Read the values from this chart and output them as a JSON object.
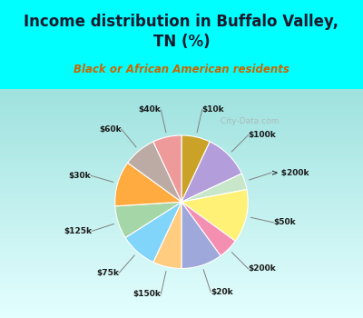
{
  "title": "Income distribution in Buffalo Valley,\nTN (%)",
  "subtitle": "Black or African American residents",
  "title_color": "#1a1a2e",
  "subtitle_color": "#cc6600",
  "background_top": "#00ffff",
  "background_chart_color": "#d0ede8",
  "labels": [
    "$10k",
    "$100k",
    "> $200k",
    "$50k",
    "$200k",
    "$20k",
    "$150k",
    "$75k",
    "$125k",
    "$30k",
    "$60k",
    "$40k"
  ],
  "values": [
    7,
    11,
    4,
    13,
    5,
    10,
    7,
    9,
    8,
    11,
    8,
    7
  ],
  "colors": [
    "#c9a227",
    "#b39ddb",
    "#c8e6c9",
    "#fff176",
    "#f48fb1",
    "#9fa8da",
    "#ffcc80",
    "#81d4fa",
    "#a5d6a7",
    "#ffab40",
    "#bcaaa4",
    "#ef9a9a"
  ],
  "label_colors": [
    "#5d4037",
    "#5d4037",
    "#5d4037",
    "#5d4037",
    "#5d4037",
    "#5d4037",
    "#5d4037",
    "#5d4037",
    "#5d4037",
    "#5d4037",
    "#5d4037",
    "#5d4037"
  ],
  "watermark": "  City-Data.com",
  "watermark_color": "#aaaaaa"
}
